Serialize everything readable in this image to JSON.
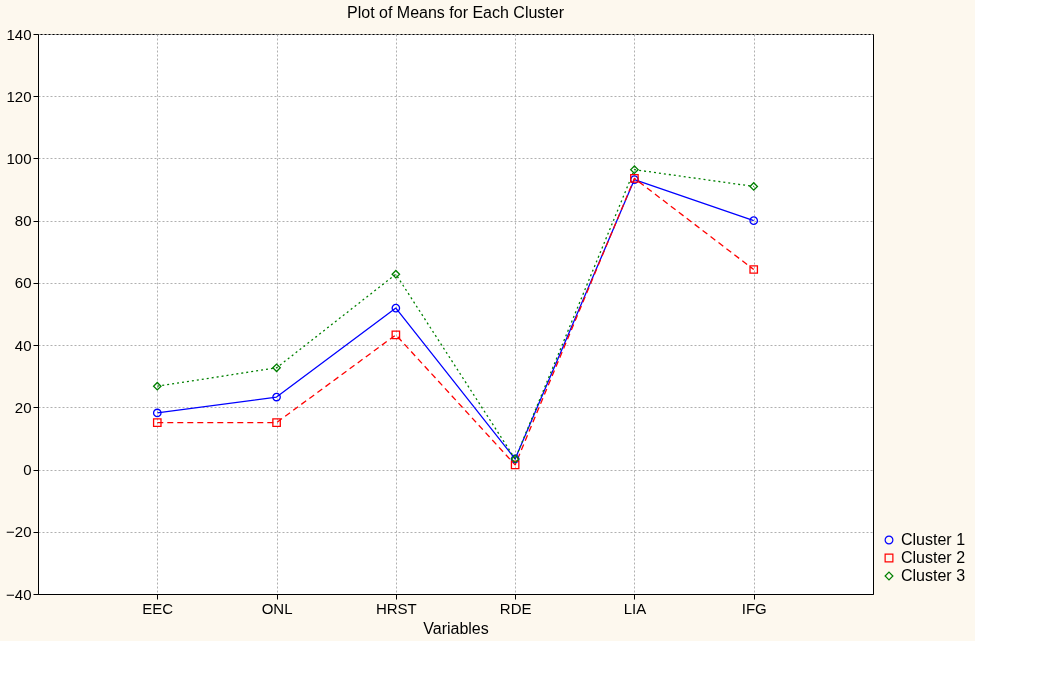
{
  "chart_data": {
    "type": "line",
    "title": "Plot of Means for Each Cluster",
    "xlabel": "Variables",
    "categories": [
      "EEC",
      "ONL",
      "HRST",
      "RDE",
      "LIA",
      "IFG"
    ],
    "series": [
      {
        "name": "Cluster  1",
        "color": "#0000ff",
        "marker": "circle",
        "line_style": "solid",
        "values": [
          18.2,
          23.3,
          51.9,
          3.4,
          93.2,
          80.0
        ]
      },
      {
        "name": "Cluster  2",
        "color": "#ff0000",
        "marker": "square",
        "line_style": "dashed",
        "values": [
          15.1,
          15.1,
          43.3,
          1.5,
          93.6,
          64.3
        ]
      },
      {
        "name": "Cluster  3",
        "color": "#008000",
        "marker": "diamond",
        "line_style": "dotted",
        "values": [
          26.8,
          32.7,
          62.8,
          3.4,
          96.4,
          91.0
        ]
      }
    ],
    "ylim": [
      -40,
      140
    ],
    "yticks": [
      -40,
      -20,
      0,
      20,
      40,
      60,
      80,
      100,
      120,
      140
    ],
    "grid": true,
    "legend": "bottom right"
  }
}
